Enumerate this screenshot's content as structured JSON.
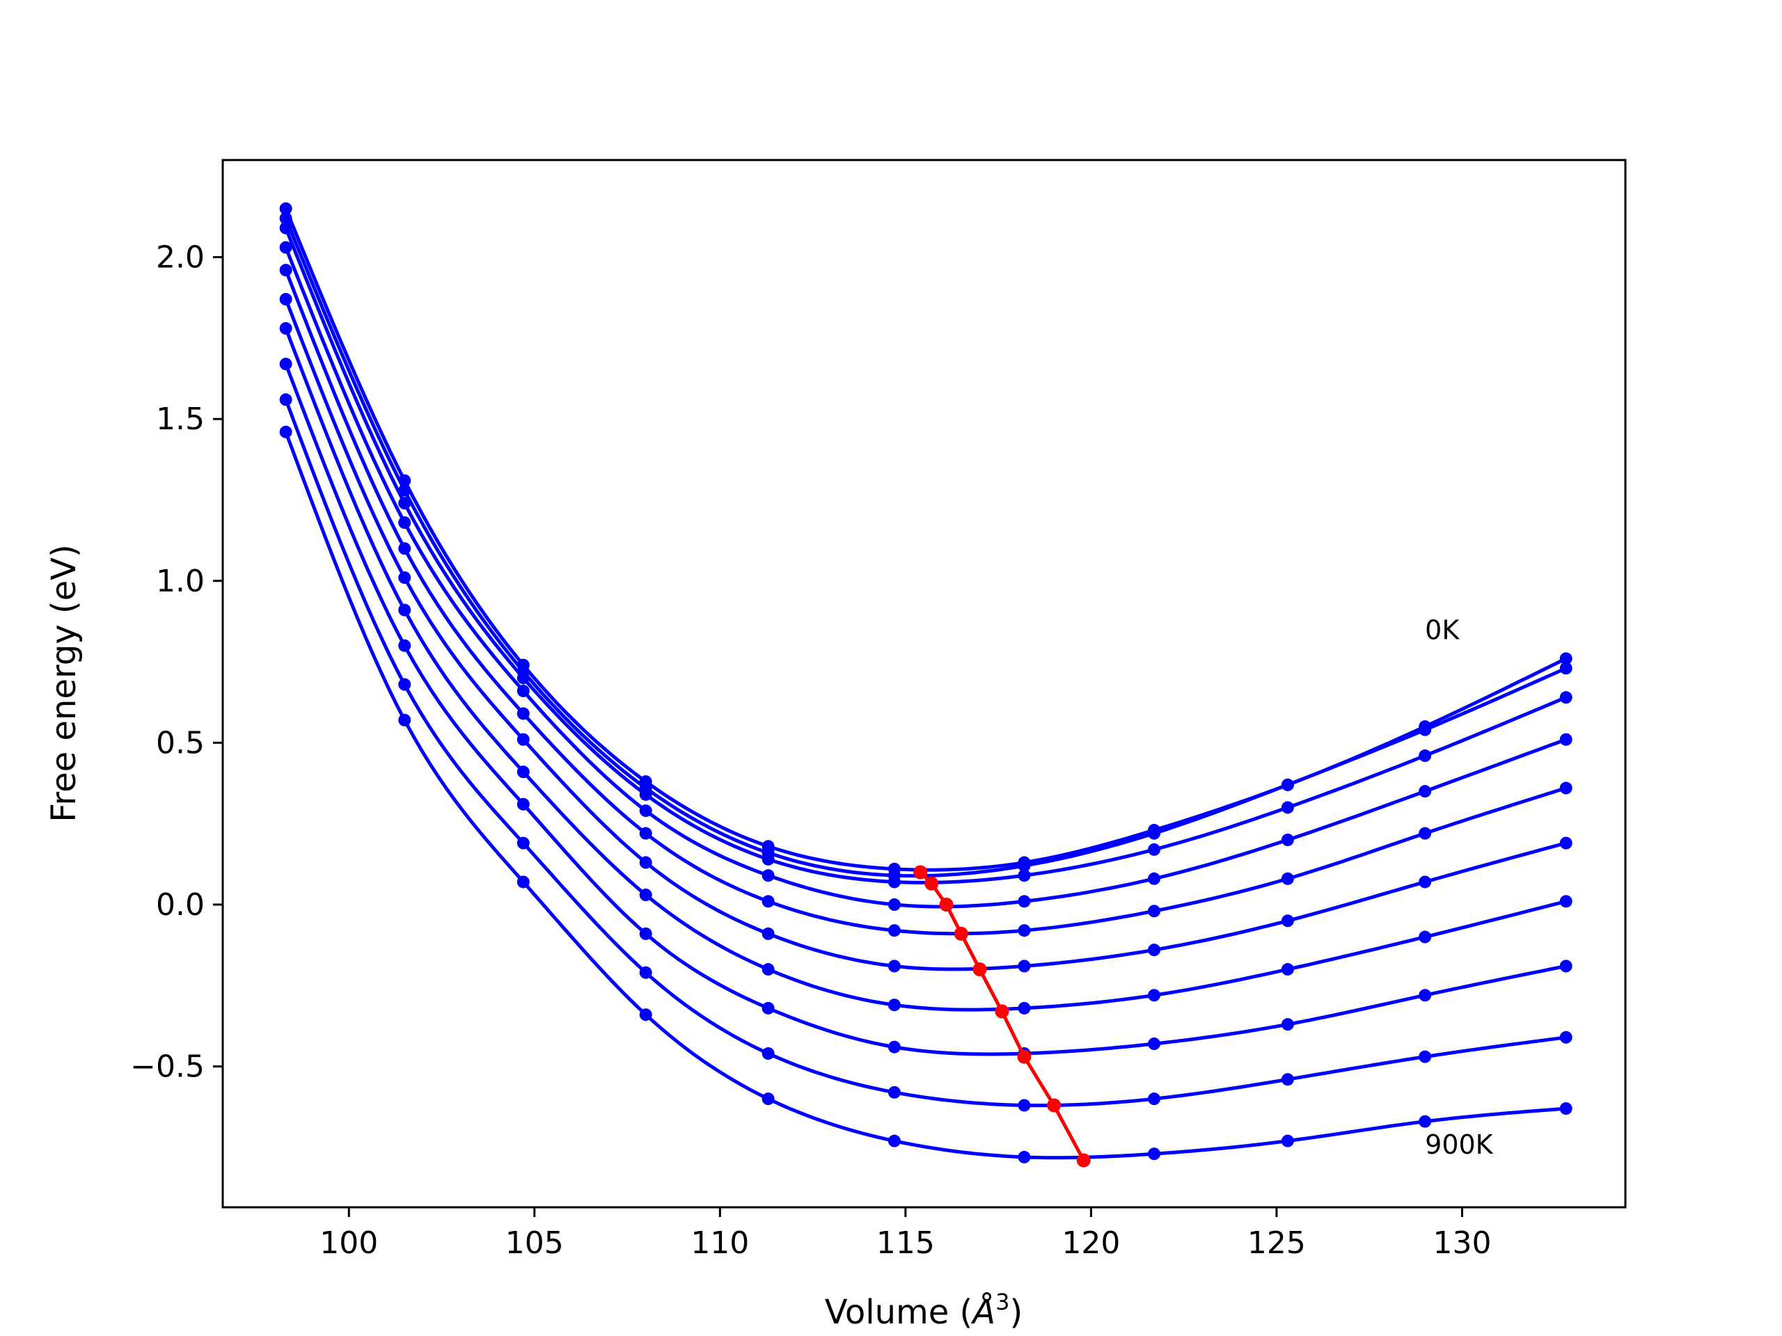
{
  "chart_data": {
    "type": "line",
    "title": "",
    "xlabel": "Volume (",
    "xlabel_unit": "Å",
    "xlabel_sup": "3",
    "xlabel_close": ")",
    "ylabel": "Free energy (eV)",
    "xlim": [
      96.6,
      134.4
    ],
    "ylim": [
      -0.935,
      2.3
    ],
    "xticks": [
      100,
      105,
      110,
      115,
      120,
      125,
      130
    ],
    "xtick_labels": [
      "100",
      "105",
      "110",
      "115",
      "120",
      "125",
      "130"
    ],
    "yticks": [
      -0.5,
      0.0,
      0.5,
      1.0,
      1.5,
      2.0
    ],
    "ytick_labels": [
      "−0.5",
      "0.0",
      "0.5",
      "1.0",
      "1.5",
      "2.0"
    ],
    "grid": false,
    "curve_color": "#0000ff",
    "minimum_color": "#ff0000",
    "annotations": [
      {
        "text": "0K",
        "x": 129.0,
        "y": 0.82
      },
      {
        "text": "900K",
        "x": 129.0,
        "y": -0.77
      }
    ],
    "volumes": [
      98.3,
      101.5,
      104.7,
      108.0,
      111.3,
      114.7,
      118.2,
      121.7,
      125.3,
      129.0,
      132.8
    ],
    "series": [
      {
        "values": [
          2.15,
          1.31,
          0.74,
          0.38,
          0.18,
          0.11,
          0.13,
          0.23,
          0.37,
          0.55,
          0.76
        ]
      },
      {
        "values": [
          2.12,
          1.28,
          0.72,
          0.36,
          0.16,
          0.09,
          0.12,
          0.22,
          0.37,
          0.54,
          0.73
        ]
      },
      {
        "values": [
          2.09,
          1.24,
          0.7,
          0.34,
          0.14,
          0.07,
          0.09,
          0.17,
          0.3,
          0.46,
          0.64
        ]
      },
      {
        "values": [
          2.03,
          1.18,
          0.66,
          0.29,
          0.09,
          0.0,
          0.01,
          0.08,
          0.2,
          0.35,
          0.51
        ]
      },
      {
        "values": [
          1.96,
          1.1,
          0.59,
          0.22,
          0.01,
          -0.08,
          -0.08,
          -0.02,
          0.08,
          0.22,
          0.36
        ]
      },
      {
        "values": [
          1.87,
          1.01,
          0.51,
          0.13,
          -0.09,
          -0.19,
          -0.19,
          -0.14,
          -0.05,
          0.07,
          0.19
        ]
      },
      {
        "values": [
          1.78,
          0.91,
          0.41,
          0.03,
          -0.2,
          -0.31,
          -0.32,
          -0.28,
          -0.2,
          -0.1,
          0.01
        ]
      },
      {
        "values": [
          1.67,
          0.8,
          0.31,
          -0.09,
          -0.32,
          -0.44,
          -0.46,
          -0.43,
          -0.37,
          -0.28,
          -0.19
        ]
      },
      {
        "values": [
          1.56,
          0.68,
          0.19,
          -0.21,
          -0.46,
          -0.58,
          -0.62,
          -0.6,
          -0.54,
          -0.47,
          -0.41
        ]
      },
      {
        "values": [
          1.46,
          0.57,
          0.07,
          -0.34,
          -0.6,
          -0.73,
          -0.78,
          -0.77,
          -0.73,
          -0.67,
          -0.63
        ]
      }
    ],
    "minima": {
      "x": [
        115.4,
        115.7,
        116.1,
        116.5,
        117.0,
        117.6,
        118.2,
        119.0,
        119.8
      ],
      "y": [
        0.1,
        0.065,
        0.0,
        -0.09,
        -0.2,
        -0.33,
        -0.47,
        -0.62,
        -0.79
      ]
    }
  }
}
